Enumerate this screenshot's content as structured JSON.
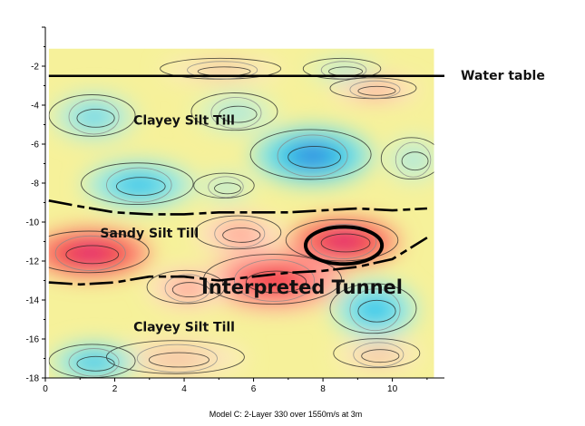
{
  "chart_data": {
    "type": "heatmap",
    "caption": "Model C: 2-Layer 330 over 1550m/s at 3m",
    "xlim": [
      0,
      11.5
    ],
    "ylim": [
      -18,
      0
    ],
    "x_ticks": [
      0,
      2,
      4,
      6,
      8,
      10
    ],
    "y_ticks": [
      -2,
      -4,
      -6,
      -8,
      -10,
      -12,
      -14,
      -16,
      -18
    ],
    "x_tick_labels": [
      "0",
      "2",
      "4",
      "6",
      "8",
      "10"
    ],
    "y_tick_labels": [
      "-2",
      "-4",
      "-6",
      "-8",
      "-10",
      "-12",
      "-14",
      "-16",
      "-18"
    ],
    "data_extent": {
      "x": [
        0.1,
        11.2
      ],
      "y": [
        -18,
        -1.1
      ]
    },
    "water_table": {
      "label": "Water table",
      "depth": -2.5,
      "x": [
        0.1,
        11.5
      ]
    },
    "layer_boundaries": [
      {
        "name": "upper",
        "points": [
          [
            0.1,
            -8.9
          ],
          [
            1,
            -9.2
          ],
          [
            2,
            -9.5
          ],
          [
            3,
            -9.6
          ],
          [
            4,
            -9.6
          ],
          [
            5,
            -9.5
          ],
          [
            6,
            -9.5
          ],
          [
            7,
            -9.5
          ],
          [
            8,
            -9.4
          ],
          [
            9,
            -9.3
          ],
          [
            10,
            -9.4
          ],
          [
            11,
            -9.3
          ]
        ]
      },
      {
        "name": "lower",
        "points": [
          [
            0.1,
            -13.1
          ],
          [
            1,
            -13.2
          ],
          [
            2,
            -13.1
          ],
          [
            3,
            -12.8
          ],
          [
            4,
            -12.8
          ],
          [
            5,
            -13.0
          ],
          [
            6,
            -12.8
          ],
          [
            7,
            -12.6
          ],
          [
            8,
            -12.5
          ],
          [
            9,
            -12.3
          ],
          [
            10,
            -11.9
          ],
          [
            11,
            -10.8
          ]
        ]
      }
    ],
    "layer_labels": [
      {
        "text": "Clayey Silt Till",
        "x": 4.0,
        "y": -5.0
      },
      {
        "text": "Sandy Silt Till",
        "x": 3.0,
        "y": -10.8
      },
      {
        "text": "Clayey Silt Till",
        "x": 4.0,
        "y": -15.6
      }
    ],
    "tunnel": {
      "label": "Interpreted Tunnel",
      "center": [
        8.6,
        -11.2
      ],
      "radius": 1.0
    },
    "anomalies": [
      {
        "x": 1.3,
        "y": -11.6,
        "level": 1.0,
        "rx": 1.4,
        "ry": 1.0
      },
      {
        "x": 8.6,
        "y": -11.0,
        "level": 1.0,
        "rx": 1.3,
        "ry": 1.0
      },
      {
        "x": 6.6,
        "y": -13.0,
        "level": 0.9,
        "rx": 1.6,
        "ry": 1.2
      },
      {
        "x": 5.6,
        "y": -10.6,
        "level": 0.55,
        "rx": 1.0,
        "ry": 0.8
      },
      {
        "x": 4.1,
        "y": -13.4,
        "level": 0.55,
        "rx": 0.9,
        "ry": 0.8
      },
      {
        "x": 5.1,
        "y": -2.2,
        "level": 0.45,
        "rx": 1.4,
        "ry": 0.5
      },
      {
        "x": 9.5,
        "y": -3.2,
        "level": 0.5,
        "rx": 1.0,
        "ry": 0.5
      },
      {
        "x": 3.8,
        "y": -17.0,
        "level": 0.45,
        "rx": 1.6,
        "ry": 0.8
      },
      {
        "x": 9.6,
        "y": -16.8,
        "level": 0.4,
        "rx": 1.0,
        "ry": 0.7
      },
      {
        "x": 7.7,
        "y": -6.6,
        "level": -1.0,
        "rx": 1.4,
        "ry": 1.2
      },
      {
        "x": 2.7,
        "y": -8.1,
        "level": -0.9,
        "rx": 1.3,
        "ry": 1.0
      },
      {
        "x": 1.4,
        "y": -4.6,
        "level": -0.55,
        "rx": 1.0,
        "ry": 1.0
      },
      {
        "x": 5.5,
        "y": -4.4,
        "level": -0.35,
        "rx": 1.0,
        "ry": 0.9
      },
      {
        "x": 8.6,
        "y": -2.2,
        "level": -0.4,
        "rx": 0.9,
        "ry": 0.5
      },
      {
        "x": 9.5,
        "y": -14.5,
        "level": -0.85,
        "rx": 1.0,
        "ry": 1.2
      },
      {
        "x": 1.4,
        "y": -17.2,
        "level": -0.75,
        "rx": 1.0,
        "ry": 0.8
      },
      {
        "x": 5.2,
        "y": -8.2,
        "level": -0.35,
        "rx": 0.7,
        "ry": 0.6
      },
      {
        "x": 10.6,
        "y": -6.8,
        "level": -0.3,
        "rx": 0.7,
        "ry": 1.0
      }
    ]
  }
}
